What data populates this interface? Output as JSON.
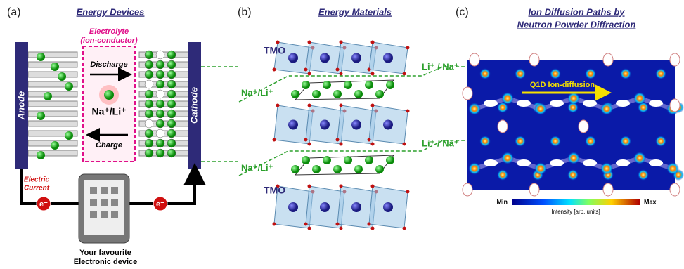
{
  "panel_a": {
    "label": "(a)",
    "title": "Energy Devices",
    "electrolyte": [
      "Electrolyte",
      "(ion-conductor)"
    ],
    "discharge": "Discharge",
    "charge": "Charge",
    "ion": "Na⁺/Li⁺",
    "anode": "Anode",
    "cathode": "Cathode",
    "current": [
      "Electric",
      "Current"
    ],
    "electrons": [
      "e⁻",
      "e⁻"
    ],
    "device": [
      "Your favourite",
      "Electronic device"
    ]
  },
  "panel_b": {
    "label": "(b)",
    "title": "Energy Materials",
    "tmo": [
      "TMO",
      "TMO"
    ],
    "left_ions": [
      "Na⁺/Li⁺",
      "Na⁺/Li⁺"
    ],
    "right_ions": [
      "Li⁺ / Na⁺",
      "Li⁺ / Na⁺"
    ]
  },
  "panel_c": {
    "label": "(c)",
    "title": [
      "Ion Diffusion Paths by",
      "Neutron Powder Diffraction"
    ],
    "arrow_label": "Q1D Ion-diffusion",
    "colorbar": {
      "min": "Min",
      "max": "Max",
      "label": "Intensity [arb. units]"
    }
  }
}
